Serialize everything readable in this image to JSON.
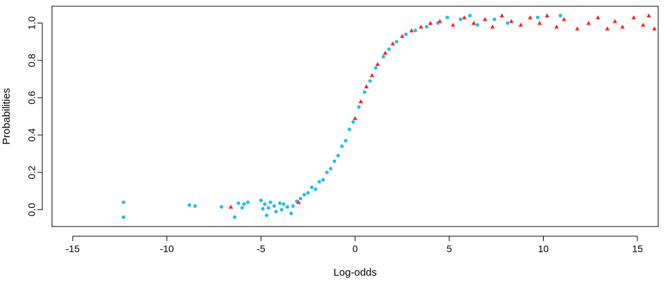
{
  "chart_data": {
    "type": "scatter",
    "title": "",
    "xlabel": "Log-odds",
    "ylabel": "Probabilities",
    "xlim": [
      -16.1,
      16.1
    ],
    "ylim": [
      -0.09,
      1.09
    ],
    "xticks": [
      -15,
      -10,
      -5,
      0,
      5,
      10,
      15
    ],
    "xtick_labels": [
      "-15",
      "-10",
      "-5",
      "0",
      "5",
      "10",
      "15"
    ],
    "yticks": [
      0.0,
      0.2,
      0.4,
      0.6,
      0.8,
      1.0
    ],
    "ytick_labels": [
      "0.0",
      "0.2",
      "0.4",
      "0.6",
      "0.8",
      "1.0"
    ],
    "grid": false,
    "series": [
      {
        "color": "#00B0E8",
        "marker": "circle",
        "points": [
          [
            -12.3,
            0.04
          ],
          [
            -12.3,
            -0.04
          ],
          [
            -8.8,
            0.025
          ],
          [
            -8.5,
            0.02
          ],
          [
            -7.1,
            0.015
          ],
          [
            -6.4,
            -0.04
          ],
          [
            -6.2,
            0.035
          ],
          [
            -6.0,
            0.01
          ],
          [
            -5.9,
            0.03
          ],
          [
            -5.7,
            0.04
          ],
          [
            -5.0,
            0.05
          ],
          [
            -4.9,
            0.005
          ],
          [
            -4.8,
            0.03
          ],
          [
            -4.7,
            -0.03
          ],
          [
            -4.6,
            0.01
          ],
          [
            -4.5,
            0.04
          ],
          [
            -4.3,
            0.02
          ],
          [
            -4.2,
            -0.01
          ],
          [
            -4.0,
            0.035
          ],
          [
            -3.9,
            0.0
          ],
          [
            -3.8,
            0.03
          ],
          [
            -3.6,
            0.015
          ],
          [
            -3.4,
            -0.02
          ],
          [
            -3.3,
            0.02
          ],
          [
            -3.1,
            0.045
          ],
          [
            -2.9,
            0.06
          ],
          [
            -2.7,
            0.08
          ],
          [
            -2.5,
            0.09
          ],
          [
            -2.3,
            0.12
          ],
          [
            -2.1,
            0.11
          ],
          [
            -1.9,
            0.15
          ],
          [
            -1.7,
            0.16
          ],
          [
            -1.5,
            0.2
          ],
          [
            -1.3,
            0.22
          ],
          [
            -1.1,
            0.26
          ],
          [
            -0.9,
            0.29
          ],
          [
            -0.7,
            0.34
          ],
          [
            -0.5,
            0.37
          ],
          [
            -0.3,
            0.43
          ],
          [
            -0.1,
            0.47
          ],
          [
            0.2,
            0.55
          ],
          [
            0.5,
            0.63
          ],
          [
            0.8,
            0.69
          ],
          [
            1.1,
            0.76
          ],
          [
            1.5,
            0.82
          ],
          [
            1.8,
            0.86
          ],
          [
            2.2,
            0.9
          ],
          [
            2.7,
            0.94
          ],
          [
            3.2,
            0.96
          ],
          [
            3.8,
            0.98
          ],
          [
            4.4,
            1.0
          ],
          [
            4.9,
            1.03
          ],
          [
            5.6,
            1.02
          ],
          [
            6.1,
            1.04
          ],
          [
            6.5,
            0.99
          ],
          [
            7.4,
            1.02
          ],
          [
            8.1,
            1.0
          ],
          [
            9.7,
            1.03
          ],
          [
            10.9,
            1.04
          ]
        ]
      },
      {
        "color": "#FF2020",
        "marker": "triangle",
        "points": [
          [
            -6.6,
            0.015
          ],
          [
            -3.0,
            0.04
          ],
          [
            0.0,
            0.49
          ],
          [
            0.3,
            0.58
          ],
          [
            0.6,
            0.66
          ],
          [
            0.9,
            0.72
          ],
          [
            1.2,
            0.78
          ],
          [
            1.6,
            0.84
          ],
          [
            2.0,
            0.89
          ],
          [
            2.5,
            0.93
          ],
          [
            3.0,
            0.96
          ],
          [
            3.5,
            0.98
          ],
          [
            4.0,
            1.0
          ],
          [
            4.5,
            1.01
          ],
          [
            5.2,
            0.99
          ],
          [
            5.8,
            1.03
          ],
          [
            6.3,
            1.0
          ],
          [
            6.9,
            1.02
          ],
          [
            7.3,
            0.98
          ],
          [
            7.8,
            1.04
          ],
          [
            8.3,
            1.01
          ],
          [
            8.8,
            0.99
          ],
          [
            9.3,
            1.03
          ],
          [
            9.8,
            1.0
          ],
          [
            10.2,
            1.04
          ],
          [
            10.7,
            0.98
          ],
          [
            11.1,
            1.02
          ],
          [
            11.8,
            0.97
          ],
          [
            12.4,
            1.0
          ],
          [
            12.9,
            1.03
          ],
          [
            13.4,
            0.97
          ],
          [
            13.8,
            1.01
          ],
          [
            14.2,
            0.98
          ],
          [
            14.8,
            1.03
          ],
          [
            15.3,
            0.99
          ],
          [
            15.6,
            1.04
          ],
          [
            15.9,
            0.97
          ]
        ]
      }
    ]
  }
}
